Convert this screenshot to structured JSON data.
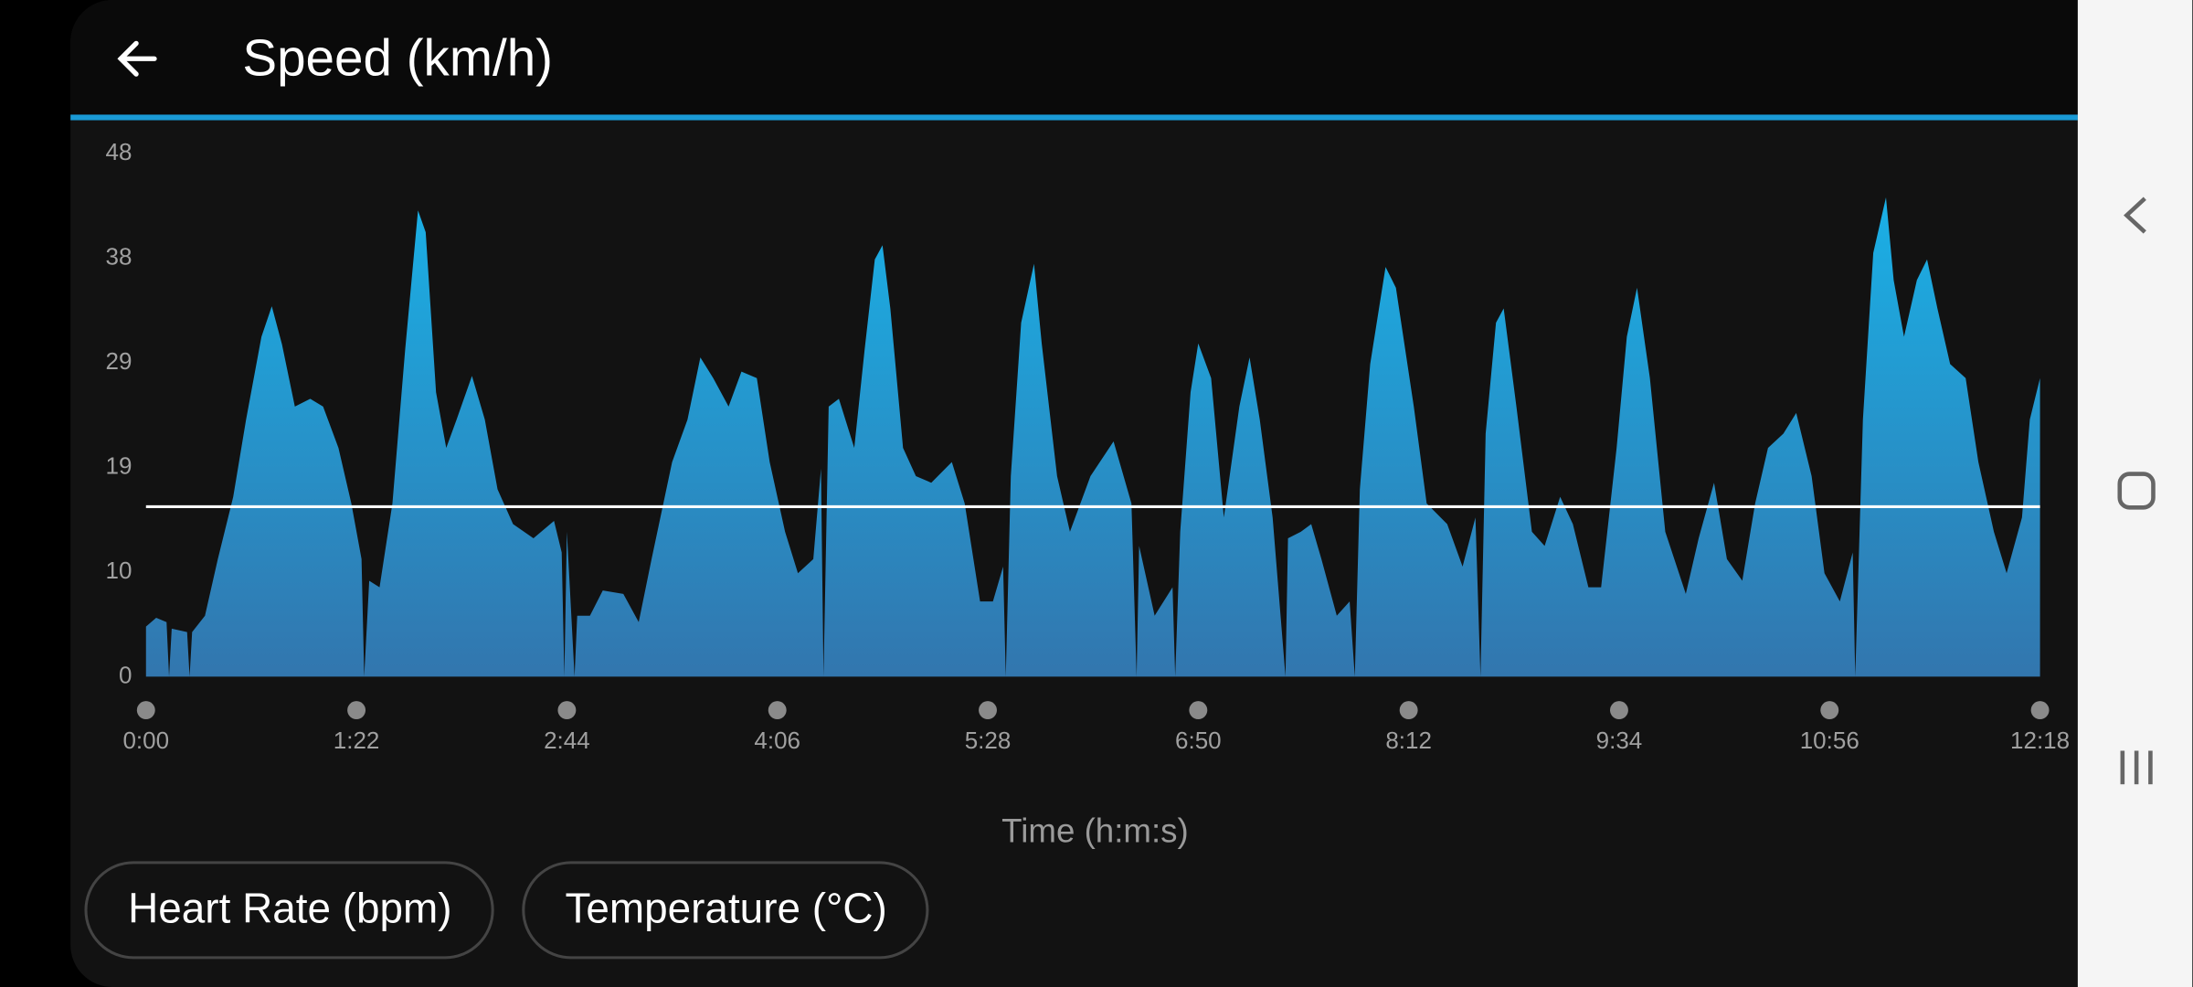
{
  "chart_data": {
    "type": "area",
    "title": "Speed (km/h)",
    "x_label": "Time (h:m:s)",
    "color": "#1ab0e6",
    "x": [
      0,
      4,
      8,
      9,
      10,
      16,
      17,
      18,
      23,
      28,
      34,
      39,
      45,
      49,
      53,
      58,
      64,
      69,
      75,
      80,
      84,
      85,
      87,
      91,
      96,
      101,
      106,
      109,
      113,
      117,
      121,
      127,
      132,
      137,
      143,
      151,
      159,
      162,
      163,
      164,
      167,
      168,
      173,
      178,
      186,
      192,
      197,
      205,
      211,
      216,
      221,
      227,
      232,
      238,
      243,
      249,
      254,
      260,
      263,
      264,
      266,
      270,
      276,
      280,
      284,
      287,
      290,
      295,
      300,
      306,
      314,
      319,
      325,
      330,
      334,
      335,
      337,
      341,
      346,
      349,
      355,
      360,
      368,
      377,
      384,
      386,
      387,
      393,
      400,
      401,
      403,
      407,
      410,
      415,
      420,
      426,
      430,
      434,
      439,
      444,
      445,
      450,
      454,
      458,
      464,
      469,
      471,
      473,
      477,
      483,
      487,
      494,
      499,
      507,
      513,
      518,
      520,
      522,
      526,
      529,
      534,
      540,
      545,
      551,
      556,
      562,
      567,
      573,
      577,
      581,
      586,
      592,
      600,
      605,
      611,
      616,
      622,
      627,
      632,
      638,
      643,
      649,
      654,
      660,
      665,
      666,
      669,
      673,
      678,
      681,
      685,
      690,
      694,
      698,
      703,
      709,
      714,
      720,
      725,
      731,
      734,
      738
    ],
    "values": [
      4.6,
      5.4,
      5.0,
      0,
      4.4,
      4.1,
      0,
      4.1,
      5.6,
      10.8,
      16.5,
      23.6,
      31.2,
      34.0,
      30.5,
      24.8,
      25.5,
      24.8,
      21.0,
      15.9,
      10.8,
      0,
      8.8,
      8.2,
      15.9,
      30.0,
      42.8,
      40.8,
      26.1,
      21.0,
      23.6,
      27.6,
      23.6,
      17.2,
      14.0,
      12.7,
      14.3,
      11.4,
      0,
      13.3,
      0,
      5.6,
      5.6,
      7.9,
      7.6,
      5.0,
      10.8,
      19.7,
      23.6,
      29.3,
      27.4,
      24.8,
      28.0,
      27.4,
      19.7,
      13.3,
      9.5,
      10.8,
      19.1,
      0,
      24.8,
      25.5,
      21.0,
      30.0,
      38.3,
      39.6,
      33.8,
      21.0,
      18.4,
      17.8,
      19.7,
      15.9,
      6.9,
      6.9,
      10.1,
      0,
      18.4,
      32.5,
      37.9,
      30.6,
      18.4,
      13.3,
      18.4,
      21.6,
      15.9,
      0,
      12.0,
      5.6,
      8.2,
      0,
      13.3,
      26.1,
      30.6,
      27.4,
      14.6,
      24.8,
      29.3,
      23.6,
      14.6,
      0,
      12.7,
      13.3,
      14.0,
      10.8,
      5.6,
      6.9,
      0,
      17.2,
      28.7,
      37.6,
      35.7,
      24.8,
      15.9,
      14.0,
      10.1,
      14.6,
      0,
      22.3,
      32.5,
      33.8,
      24.8,
      13.3,
      12.0,
      16.5,
      14.0,
      8.2,
      8.2,
      21.0,
      31.2,
      35.7,
      27.4,
      13.3,
      7.6,
      12.7,
      17.8,
      10.8,
      8.8,
      15.9,
      21.0,
      22.3,
      24.2,
      18.4,
      9.5,
      6.9,
      11.4,
      0,
      23.6,
      38.9,
      44.0,
      36.4,
      31.2,
      36.4,
      38.3,
      33.8,
      28.7,
      27.4,
      19.7,
      13.3,
      9.5,
      14.6,
      23.6,
      27.4
    ],
    "average": 15.6,
    "xlim": [
      0,
      738
    ],
    "xticks": [
      {
        "value": 0,
        "label": "0:00"
      },
      {
        "value": 82,
        "label": "1:22"
      },
      {
        "value": 164,
        "label": "2:44"
      },
      {
        "value": 246,
        "label": "4:06"
      },
      {
        "value": 328,
        "label": "5:28"
      },
      {
        "value": 410,
        "label": "6:50"
      },
      {
        "value": 492,
        "label": "8:12"
      },
      {
        "value": 574,
        "label": "9:34"
      },
      {
        "value": 656,
        "label": "10:56"
      },
      {
        "value": 738,
        "label": "12:18"
      }
    ],
    "ylim": [
      0,
      48
    ],
    "yticks": [
      0,
      {
        "value": 9.6,
        "label": "10"
      },
      {
        "value": 19.2,
        "label": "19"
      },
      {
        "value": 28.8,
        "label": "29"
      },
      {
        "value": 38.4,
        "label": "38"
      },
      48
    ]
  },
  "buttons": [
    "Heart Rate (bpm)",
    "Temperature (°C)"
  ]
}
